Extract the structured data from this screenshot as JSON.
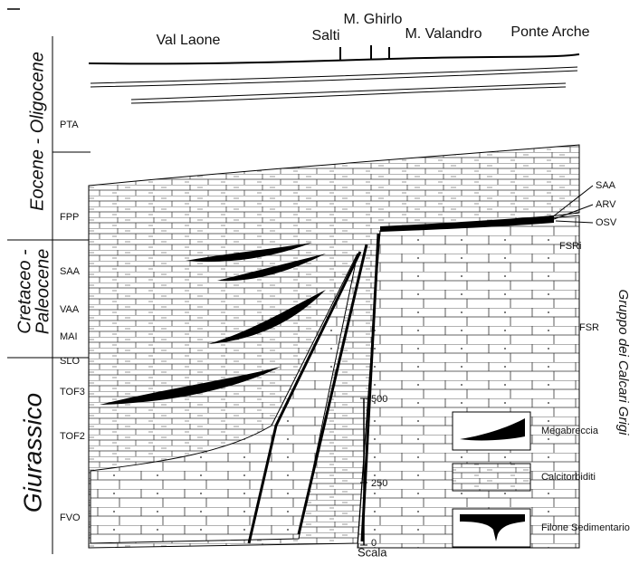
{
  "header": {
    "localities": [
      "Val Laone",
      "Salti",
      "M. Ghirlo",
      "M. Valandro",
      "Ponte Arche"
    ]
  },
  "periods": [
    "Eocene - Oligocene",
    "Cretaceo -",
    "Paleocene",
    "Giurassico"
  ],
  "left_units": [
    "PTA",
    "FPP",
    "SAA",
    "VAA",
    "MAI",
    "SLO",
    "TOF3",
    "TOF2",
    "FVO"
  ],
  "right_units": [
    "SAA",
    "ARV",
    "OSV",
    "FSRi",
    "FSR"
  ],
  "group_label": "Gruppo dei Calcari Grigi",
  "scale": {
    "ticks": [
      "500",
      "250",
      "0"
    ],
    "label": "Scala"
  },
  "legend": [
    "Megabreccia",
    "Calcitorbiditi",
    "Filone Sedimentario"
  ]
}
